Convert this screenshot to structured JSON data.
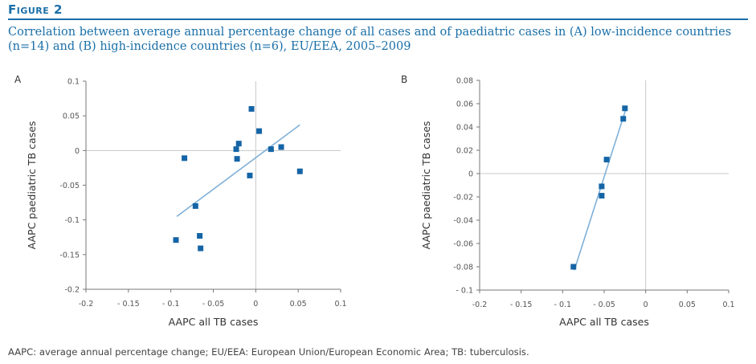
{
  "figure": {
    "label": "Figure 2",
    "title": "Correlation between average annual percentage change of all cases and of paediatric cases in (A) low-incidence countries (n=14) and (B) high-incidence countries (n=6), EU/EEA, 2005–2009",
    "footnote": "AAPC: average annual percentage change; EU/EEA: European Union/European Economic Area; TB: tuberculosis.",
    "accent_color": "#1a6fa8"
  },
  "chart_data": [
    {
      "type": "scatter",
      "panel": "A",
      "xlabel": "AAPC all TB cases",
      "ylabel": "AAPC paediatric TB cases",
      "xlim": [
        -0.2,
        0.1
      ],
      "ylim": [
        -0.2,
        0.1
      ],
      "xticks": [
        -0.2,
        -0.15,
        -0.1,
        -0.05,
        0,
        0.05,
        0.1
      ],
      "xtick_labels": [
        "-0.2",
        "- 0.15",
        "- 0.1",
        "- 0.05",
        "0",
        "0.05",
        "0.1"
      ],
      "yticks": [
        0.1,
        0.05,
        0,
        -0.05,
        -0.1,
        -0.15,
        -0.2
      ],
      "ytick_labels": [
        "0.1",
        "0.05",
        "0",
        "-0.05",
        "-0.1",
        "-0.15",
        "-0.2"
      ],
      "marker_color": "#1565a6",
      "trend_color": "#7fb0d8",
      "points": [
        {
          "x": -0.005,
          "y": 0.06
        },
        {
          "x": 0.004,
          "y": 0.028
        },
        {
          "x": -0.02,
          "y": 0.01
        },
        {
          "x": -0.023,
          "y": 0.002
        },
        {
          "x": -0.022,
          "y": -0.012
        },
        {
          "x": 0.03,
          "y": 0.005
        },
        {
          "x": 0.018,
          "y": 0.002
        },
        {
          "x": -0.084,
          "y": -0.011
        },
        {
          "x": -0.007,
          "y": -0.036
        },
        {
          "x": 0.052,
          "y": -0.03
        },
        {
          "x": -0.071,
          "y": -0.08
        },
        {
          "x": -0.066,
          "y": -0.123
        },
        {
          "x": -0.094,
          "y": -0.129
        },
        {
          "x": -0.065,
          "y": -0.141
        }
      ],
      "trendline": {
        "x": [
          -0.093,
          0.052
        ],
        "y": [
          -0.095,
          0.037
        ]
      }
    },
    {
      "type": "scatter",
      "panel": "B",
      "xlabel": "AAPC all TB cases",
      "ylabel": "AAPC paediatric TB cases",
      "xlim": [
        -0.2,
        0.1
      ],
      "ylim": [
        -0.1,
        0.08
      ],
      "xticks": [
        -0.2,
        -0.15,
        -0.1,
        -0.05,
        0,
        0.05,
        0.1
      ],
      "xtick_labels": [
        "-0.2",
        "- 0.15",
        "- 0.1",
        "- 0.05",
        "0",
        "0.05",
        "0.1"
      ],
      "yticks": [
        0.08,
        0.06,
        0.04,
        0.02,
        0,
        -0.02,
        -0.04,
        -0.06,
        -0.08,
        -0.1
      ],
      "ytick_labels": [
        "0.08",
        "0.06",
        "0.04",
        "0.02",
        "0",
        "-0.02",
        "-0.04",
        "-0.06",
        "-0.08",
        "- 0.1"
      ],
      "marker_color": "#1565a6",
      "trend_color": "#7fb0d8",
      "points": [
        {
          "x": -0.025,
          "y": 0.056
        },
        {
          "x": -0.027,
          "y": 0.047
        },
        {
          "x": -0.047,
          "y": 0.012
        },
        {
          "x": -0.053,
          "y": -0.011
        },
        {
          "x": -0.053,
          "y": -0.019
        },
        {
          "x": -0.087,
          "y": -0.08
        }
      ],
      "trendline": {
        "x": [
          -0.086,
          -0.024
        ],
        "y": [
          -0.083,
          0.055
        ]
      }
    }
  ]
}
